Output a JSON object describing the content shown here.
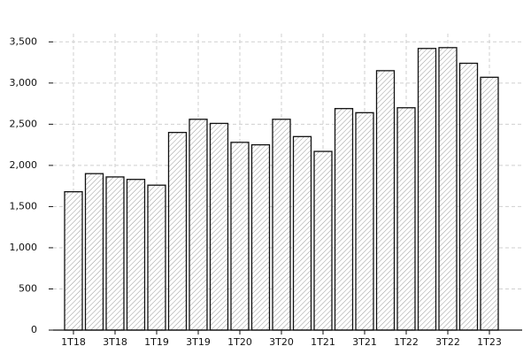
{
  "chart_data": {
    "type": "bar",
    "categories": [
      "1T18",
      null,
      "3T18",
      null,
      "1T19",
      null,
      "3T19",
      null,
      "1T20",
      null,
      "3T20",
      null,
      "1T21",
      null,
      "3T21",
      null,
      "1T22",
      null,
      "3T22",
      null,
      "1T23"
    ],
    "values": [
      1680,
      1900,
      1860,
      1830,
      1760,
      2400,
      2560,
      2510,
      2280,
      2250,
      2560,
      2350,
      2170,
      2690,
      2640,
      3150,
      2700,
      3420,
      3430,
      3240,
      3070
    ],
    "color": "#ffffff",
    "edgecolor": "#111111",
    "hatch": true,
    "ylim": [
      0,
      3600
    ],
    "yticks": [
      0,
      500,
      {
        "value": 1000,
        "label": "1,000"
      },
      {
        "value": 1500,
        "label": "1,500"
      },
      {
        "value": 2000,
        "label": "2,000"
      },
      {
        "value": 2500,
        "label": "2,500"
      },
      {
        "value": 3000,
        "label": "3,000"
      },
      {
        "value": 3500,
        "label": "3,500"
      }
    ],
    "grid": true
  }
}
